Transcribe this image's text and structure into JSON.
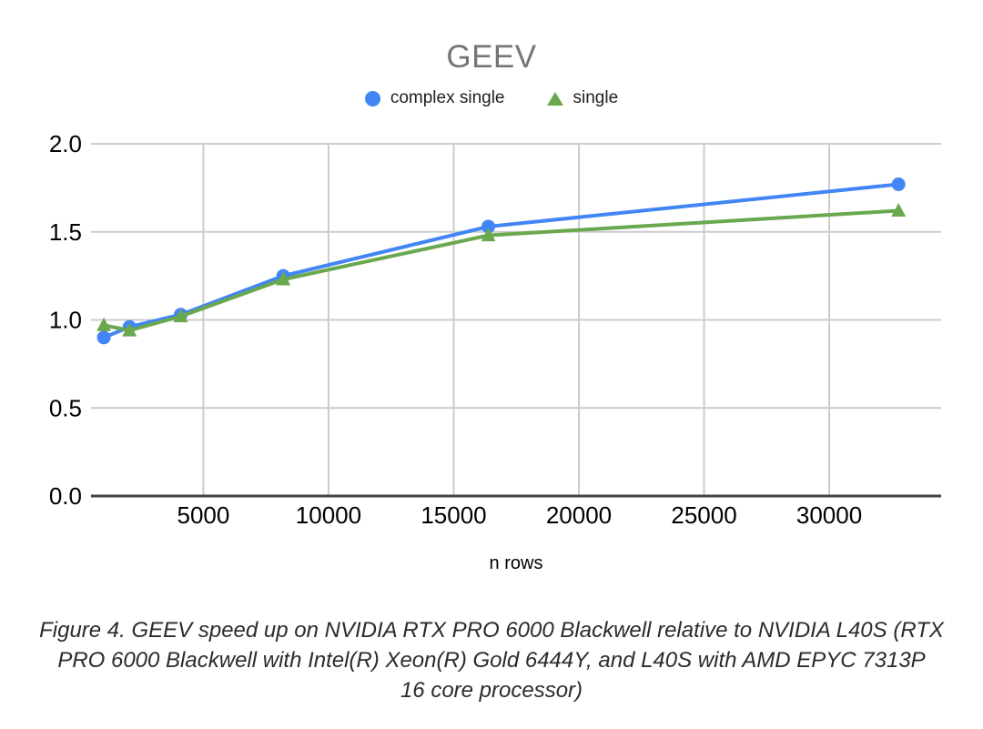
{
  "chart": {
    "title": "GEEV",
    "legend": [
      "complex single",
      "single"
    ]
  },
  "chart_data": {
    "type": "line",
    "title": "GEEV",
    "x": [
      1024,
      2048,
      4096,
      8192,
      16384,
      32768
    ],
    "series": [
      {
        "name": "complex single",
        "marker": "circle",
        "color": "#4285F4",
        "values": [
          0.9,
          0.96,
          1.03,
          1.25,
          1.53,
          1.77
        ]
      },
      {
        "name": "single",
        "marker": "triangle",
        "color": "#6AA84F",
        "values": [
          0.97,
          0.94,
          1.02,
          1.23,
          1.48,
          1.62
        ]
      }
    ],
    "xlabel": "n rows",
    "ylabel": "",
    "x_axis": {
      "min": 512,
      "max": 34470,
      "ticks": [
        5000,
        10000,
        15000,
        20000,
        25000,
        30000
      ]
    },
    "y_axis": {
      "min": 0,
      "max": 2,
      "ticks": [
        0,
        0.5,
        1,
        1.5,
        2
      ]
    },
    "grid": true,
    "legend_position": "top"
  },
  "style_colors": {
    "gridline": "#cccccc",
    "axis_line": "#424242",
    "title": "#757575",
    "tick_label": "#000000"
  },
  "caption": {
    "lines": [
      "Figure 4. GEEV speed up on NVIDIA RTX PRO 6000 Blackwell relative to NVIDIA L40S (RTX",
      "PRO 6000 Blackwell with Intel(R) Xeon(R) Gold 6444Y, and L40S with AMD EPYC 7313P",
      "16 core processor)"
    ]
  }
}
